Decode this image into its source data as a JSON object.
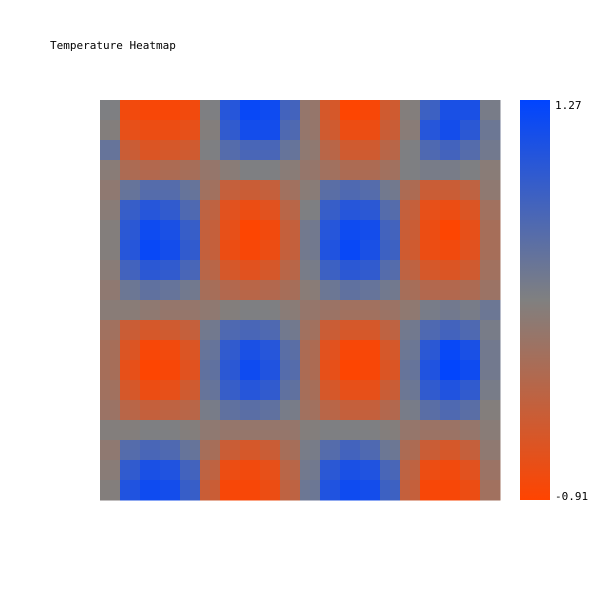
{
  "chart_data": {
    "type": "heatmap",
    "title": "Temperature Heatmap",
    "rows": 20,
    "cols": 20,
    "color_range": [
      -0.91,
      1.27
    ],
    "colorbar": {
      "max_label": "1.27",
      "min_label": "-0.91",
      "low_color": "#ff4400",
      "mid_color": "#808080",
      "high_color": "#0044ff"
    },
    "values": [
      [
        0.2,
        -0.8,
        -0.85,
        -0.85,
        -0.8,
        0.2,
        0.95,
        1.2,
        1.15,
        0.7,
        0.0,
        -0.55,
        -0.9,
        -0.85,
        -0.5,
        0.15,
        0.75,
        1.05,
        1.05,
        0.25
      ],
      [
        0.15,
        -0.7,
        -0.75,
        -0.75,
        -0.7,
        0.15,
        0.85,
        1.1,
        1.1,
        0.6,
        0.0,
        -0.5,
        -0.75,
        -0.75,
        -0.45,
        0.1,
        0.95,
        1.1,
        0.9,
        0.35
      ],
      [
        0.4,
        -0.45,
        -0.6,
        -0.55,
        -0.5,
        0.2,
        0.55,
        0.65,
        0.65,
        0.4,
        0.05,
        -0.3,
        -0.5,
        -0.5,
        -0.3,
        0.2,
        0.6,
        0.7,
        0.55,
        0.3
      ],
      [
        0.1,
        -0.2,
        -0.25,
        -0.2,
        -0.15,
        0.0,
        0.1,
        0.2,
        0.2,
        0.1,
        0.0,
        -0.1,
        -0.2,
        -0.2,
        -0.1,
        0.2,
        0.25,
        0.25,
        0.2,
        0.1
      ],
      [
        0.05,
        0.4,
        0.55,
        0.55,
        0.4,
        -0.1,
        -0.4,
        -0.45,
        -0.4,
        -0.1,
        0.1,
        0.5,
        0.6,
        0.55,
        0.3,
        -0.2,
        -0.45,
        -0.45,
        -0.35,
        0.05
      ],
      [
        0.1,
        0.8,
        0.95,
        0.85,
        0.6,
        -0.35,
        -0.65,
        -0.75,
        -0.65,
        -0.3,
        0.2,
        0.8,
        0.95,
        0.9,
        0.55,
        -0.4,
        -0.7,
        -0.75,
        -0.6,
        -0.1
      ],
      [
        0.15,
        0.9,
        1.15,
        1.05,
        0.8,
        -0.4,
        -0.7,
        -0.9,
        -0.8,
        -0.4,
        0.3,
        0.95,
        1.15,
        1.1,
        0.7,
        -0.45,
        -0.75,
        -0.9,
        -0.7,
        -0.15
      ],
      [
        0.15,
        0.95,
        1.2,
        1.1,
        0.85,
        -0.4,
        -0.75,
        -0.85,
        -0.75,
        -0.4,
        0.3,
        1.0,
        1.2,
        1.05,
        0.75,
        -0.5,
        -0.75,
        -0.8,
        -0.65,
        -0.15
      ],
      [
        0.1,
        0.7,
        0.9,
        0.85,
        0.65,
        -0.3,
        -0.55,
        -0.65,
        -0.55,
        -0.3,
        0.25,
        0.75,
        0.9,
        0.85,
        0.55,
        -0.35,
        -0.55,
        -0.6,
        -0.5,
        -0.1
      ],
      [
        0.05,
        0.35,
        0.45,
        0.4,
        0.3,
        -0.15,
        -0.25,
        -0.3,
        -0.25,
        -0.15,
        0.1,
        0.35,
        0.45,
        0.4,
        0.3,
        -0.15,
        -0.25,
        -0.25,
        -0.2,
        -0.05
      ],
      [
        0.1,
        0.1,
        0.05,
        0.0,
        0.0,
        0.05,
        0.15,
        0.2,
        0.2,
        0.1,
        0.0,
        -0.05,
        -0.1,
        -0.1,
        -0.05,
        0.05,
        0.25,
        0.3,
        0.25,
        0.35
      ],
      [
        -0.1,
        -0.45,
        -0.55,
        -0.5,
        -0.4,
        0.3,
        0.6,
        0.65,
        0.6,
        0.3,
        -0.1,
        -0.45,
        -0.55,
        -0.55,
        -0.35,
        0.3,
        0.6,
        0.7,
        0.6,
        0.25
      ],
      [
        -0.15,
        -0.6,
        -0.85,
        -0.8,
        -0.6,
        0.4,
        0.85,
        1.05,
        0.95,
        0.5,
        -0.2,
        -0.65,
        -0.85,
        -0.85,
        -0.55,
        0.35,
        0.9,
        1.2,
        1.05,
        0.3
      ],
      [
        -0.15,
        -0.7,
        -0.9,
        -0.85,
        -0.65,
        0.45,
        0.9,
        1.15,
        1.0,
        0.55,
        -0.2,
        -0.7,
        -0.9,
        -0.85,
        -0.6,
        0.4,
        1.0,
        1.25,
        1.15,
        0.3
      ],
      [
        -0.1,
        -0.55,
        -0.75,
        -0.7,
        -0.5,
        0.4,
        0.8,
        0.95,
        0.85,
        0.45,
        -0.15,
        -0.55,
        -0.7,
        -0.7,
        -0.45,
        0.35,
        0.85,
        1.0,
        0.85,
        0.25
      ],
      [
        -0.05,
        -0.3,
        -0.4,
        -0.35,
        -0.3,
        0.25,
        0.45,
        0.5,
        0.45,
        0.25,
        -0.1,
        -0.3,
        -0.4,
        -0.4,
        -0.25,
        0.25,
        0.5,
        0.6,
        0.5,
        0.15
      ],
      [
        0.15,
        0.15,
        0.2,
        0.2,
        0.15,
        0.05,
        0.0,
        0.0,
        0.0,
        0.0,
        0.15,
        0.2,
        0.2,
        0.2,
        0.15,
        0.0,
        -0.05,
        -0.05,
        0.0,
        0.1
      ],
      [
        0.05,
        0.55,
        0.65,
        0.6,
        0.4,
        -0.15,
        -0.45,
        -0.55,
        -0.45,
        -0.15,
        0.25,
        0.55,
        0.7,
        0.6,
        0.35,
        -0.2,
        -0.45,
        -0.55,
        -0.4,
        0.05
      ],
      [
        0.1,
        0.85,
        1.05,
        1.0,
        0.7,
        -0.35,
        -0.75,
        -0.8,
        -0.7,
        -0.3,
        0.3,
        0.9,
        1.05,
        1.0,
        0.65,
        -0.35,
        -0.75,
        -0.8,
        -0.65,
        -0.05
      ],
      [
        0.15,
        1.0,
        1.15,
        1.1,
        0.8,
        -0.45,
        -0.85,
        -0.85,
        -0.75,
        -0.35,
        0.35,
        1.0,
        1.15,
        1.1,
        0.75,
        -0.4,
        -0.85,
        -0.85,
        -0.75,
        -0.1
      ]
    ]
  }
}
